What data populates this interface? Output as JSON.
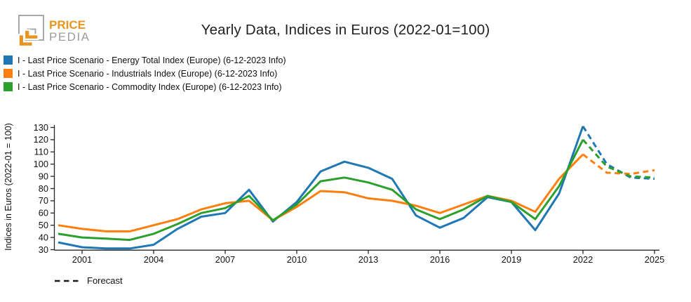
{
  "header": {
    "logo": {
      "line1": "PRICE",
      "line2": "PEDIA"
    },
    "title": "Yearly Data, Indices in Euros (2022-01=100)"
  },
  "colors": {
    "energy": "#1f77b4",
    "industrials": "#ff7f0e",
    "commodity": "#2ca02c",
    "logo_orange": "#e8951f",
    "logo_gray": "#a8a8a8",
    "axis": "#262626"
  },
  "forecast_legend": {
    "label": "Forecast"
  },
  "chart_data": {
    "type": "line",
    "title": "Yearly Data, Indices in Euros (2022-01=100)",
    "xlabel": "",
    "ylabel": "Indices in Euros (2022-01 = 100)",
    "x_range": [
      2000,
      2025
    ],
    "ylim": [
      30,
      133
    ],
    "grid": false,
    "legend_position": "top-left",
    "x": [
      2000,
      2001,
      2002,
      2003,
      2004,
      2005,
      2006,
      2007,
      2008,
      2009,
      2010,
      2011,
      2012,
      2013,
      2014,
      2015,
      2016,
      2017,
      2018,
      2019,
      2020,
      2021,
      2022,
      2023,
      2024,
      2025
    ],
    "x_ticks": [
      2001,
      2004,
      2007,
      2010,
      2013,
      2016,
      2019,
      2022,
      2025
    ],
    "y_ticks": [
      30,
      40,
      50,
      60,
      70,
      80,
      90,
      100,
      110,
      120,
      130
    ],
    "forecast_start_year": 2022,
    "series": [
      {
        "key": "energy-total-index",
        "name": "I - Last Price Scenario - Energy Total Index (Europe) (6-12-2023 Info)",
        "color": "#1f77b4",
        "values": [
          36,
          32,
          31,
          31,
          34,
          47,
          57,
          60,
          79,
          53,
          69,
          94,
          102,
          97,
          88,
          58,
          48,
          56,
          73,
          69,
          46,
          76,
          131,
          100,
          89,
          88
        ]
      },
      {
        "key": "industrials-index",
        "name": "I - Last Price Scenario - Industrials Index (Europe) (6-12-2023 Info)",
        "color": "#ff7f0e",
        "values": [
          50,
          47,
          45,
          45,
          50,
          55,
          63,
          68,
          70,
          54,
          65,
          78,
          77,
          72,
          70,
          66,
          60,
          67,
          74,
          70,
          61,
          88,
          108,
          93,
          92,
          95
        ]
      },
      {
        "key": "commodity-index",
        "name": "I - Last Price Scenario - Commodity Index (Europe) (6-12-2023 Info)",
        "color": "#2ca02c",
        "values": [
          43,
          40,
          39,
          38,
          43,
          51,
          60,
          64,
          74,
          54,
          67,
          86,
          89,
          85,
          79,
          63,
          55,
          63,
          74,
          69,
          55,
          82,
          120,
          98,
          90,
          89
        ]
      }
    ]
  }
}
